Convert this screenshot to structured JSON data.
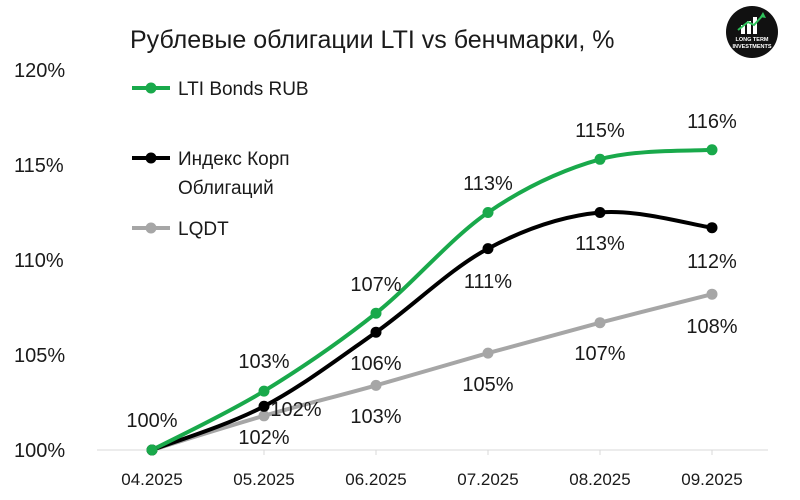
{
  "chart_data": {
    "type": "line",
    "title": "Рублевые облигации LTI vs бенчмарки, %",
    "categories": [
      "04.2025",
      "05.2025",
      "06.2025",
      "07.2025",
      "08.2025",
      "09.2025"
    ],
    "yticks": [
      "100%",
      "105%",
      "110%",
      "115%",
      "120%"
    ],
    "ylim": [
      100,
      120
    ],
    "grid": false,
    "legend_position": "top-left",
    "series": [
      {
        "name": "LTI Bonds RUB",
        "color": "#19a94b",
        "values": [
          100,
          103.1,
          107.2,
          112.5,
          115.3,
          115.8
        ],
        "labels": [
          "100%",
          "103%",
          "107%",
          "113%",
          "115%",
          "116%"
        ]
      },
      {
        "name": "Индекс Корп Облигаций",
        "name_lines": [
          "Индекс Корп",
          "Облигаций"
        ],
        "color": "#000000",
        "values": [
          100,
          102.3,
          106.2,
          110.6,
          112.5,
          111.7
        ],
        "labels": [
          "",
          "102%",
          "106%",
          "111%",
          "113%",
          "112%"
        ]
      },
      {
        "name": "LQDT",
        "color": "#a6a6a6",
        "values": [
          100,
          101.8,
          103.4,
          105.1,
          106.7,
          108.2
        ],
        "labels": [
          "",
          "102%",
          "103%",
          "105%",
          "107%",
          "108%"
        ]
      }
    ]
  },
  "logo": {
    "text_line1": "LONG TERM",
    "text_line2": "INVESTMENTS",
    "bg_color": "#111111",
    "icon": "growth-arrow-logo-icon"
  }
}
